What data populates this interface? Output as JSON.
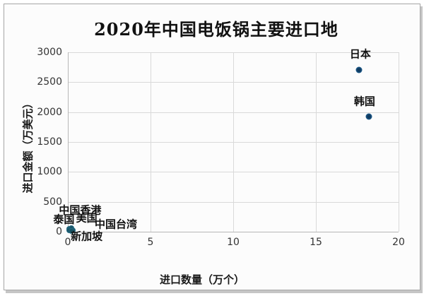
{
  "title": "2020年中国电饭锅主要进口地",
  "chart_data": {
    "type": "scatter",
    "title": "2020年中国电饭锅主要进口地",
    "xlabel": "进口数量（万个）",
    "ylabel": "进口金额（万美元）",
    "xlim": [
      0,
      20
    ],
    "ylim": [
      0,
      3000
    ],
    "xticks": [
      0,
      5,
      10,
      15,
      20
    ],
    "yticks": [
      0,
      500,
      1000,
      1500,
      2000,
      2500,
      3000
    ],
    "grid": true,
    "legend": "none",
    "marker_color": "#1d5c8e",
    "cluster_marker_color": "#26708c",
    "points": [
      {
        "label": "日本",
        "x": 17.6,
        "y": 2700,
        "group": "main"
      },
      {
        "label": "韩国",
        "x": 18.2,
        "y": 1920,
        "group": "main"
      },
      {
        "label": "中国香港",
        "x": 0.1,
        "y": 45,
        "group": "cluster"
      },
      {
        "label": "美国",
        "x": 0.2,
        "y": 55,
        "group": "cluster"
      },
      {
        "label": "泰国",
        "x": 0.1,
        "y": 25,
        "group": "cluster"
      },
      {
        "label": "中国台湾",
        "x": 0.3,
        "y": 18,
        "group": "cluster"
      },
      {
        "label": "新加坡",
        "x": 0.2,
        "y": 8,
        "group": "cluster"
      }
    ]
  }
}
